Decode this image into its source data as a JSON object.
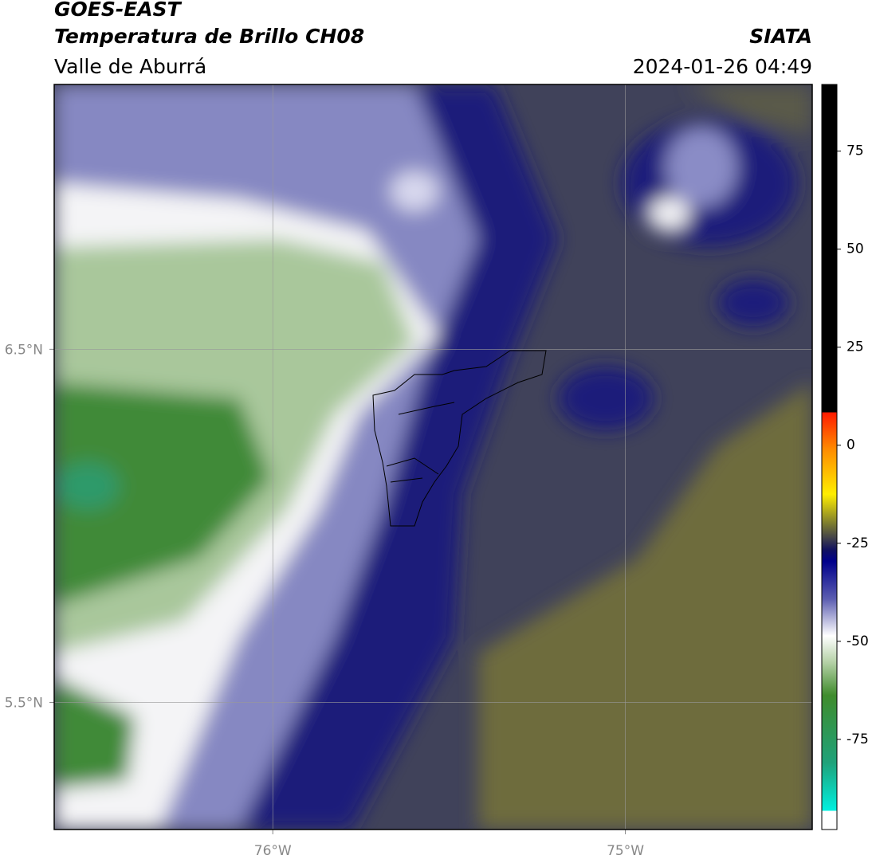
{
  "header": {
    "satellite": "GOES-EAST",
    "product": "Temperatura de Brillo CH08",
    "region": "Valle de Aburrá",
    "source": "SIATA",
    "datetime": "2024-01-26 04:49"
  },
  "map": {
    "xlim": [
      -76.62,
      -74.47
    ],
    "ylim": [
      5.14,
      7.25
    ],
    "xticks": [
      {
        "value": -76,
        "label": "76°W"
      },
      {
        "value": -75,
        "label": "75°W"
      }
    ],
    "yticks": [
      {
        "value": 6.5,
        "label": "6.5°N"
      },
      {
        "value": 5.5,
        "label": "5.5°N"
      }
    ],
    "grid": true
  },
  "colorbar": {
    "lim": [
      -98,
      92
    ],
    "ticks": [
      75,
      50,
      25,
      0,
      -25,
      -50,
      -75
    ]
  }
}
